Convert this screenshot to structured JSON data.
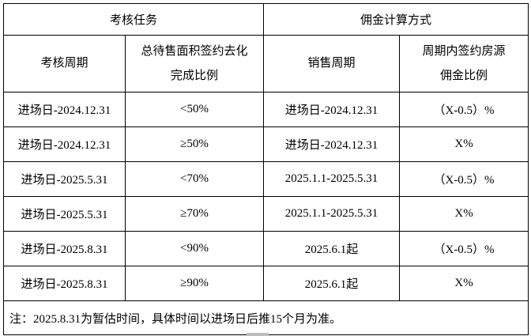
{
  "table": {
    "group_headers": [
      {
        "label": "考核任务"
      },
      {
        "label": "佣金计算方式"
      }
    ],
    "column_headers": [
      "考核周期",
      "总待售面积签约去化\n完成比例",
      "销售周期",
      "周期内签约房源\n佣金比例"
    ],
    "rows": [
      [
        "进场日-2024.12.31",
        "<50%",
        "进场日-2024.12.31",
        "（X-0.5）%"
      ],
      [
        "进场日-2024.12.31",
        "≥50%",
        "进场日-2024.12.31",
        "X%"
      ],
      [
        "进场日-2025.5.31",
        "<70%",
        "2025.1.1-2025.5.31",
        "（X-0.5）%"
      ],
      [
        "进场日-2025.5.31",
        "≥70%",
        "2025.1.1-2025.5.31",
        "X%"
      ],
      [
        "进场日-2025.8.31",
        "<90%",
        "2025.6.1起",
        "（X-0.5）%"
      ],
      [
        "进场日-2025.8.31",
        "≥90%",
        "2025.6.1起",
        "X%"
      ]
    ],
    "note": "注：2025.8.31为暂估时间，具体时间以进场日后推15个月为准。"
  },
  "colors": {
    "border": "#000000",
    "text": "#000000",
    "background": "#ffffff",
    "artifact": "#bdbdbd"
  }
}
